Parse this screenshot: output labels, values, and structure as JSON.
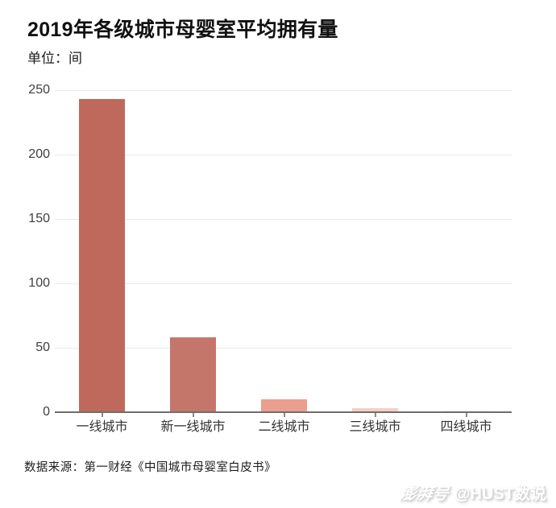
{
  "header": {
    "title": "2019年各级城市母婴室平均拥有量",
    "subtitle": "单位：间"
  },
  "footer": {
    "source": "数据来源：第一财经《中国城市母婴室白皮书》",
    "watermark_logo": "澎湃号",
    "watermark_handle": "@HUST数说"
  },
  "chart_data": {
    "type": "bar",
    "title": "2019年各级城市母婴室平均拥有量",
    "unit_label": "单位：间",
    "categories": [
      "一线城市",
      "新一线城市",
      "二线城市",
      "三线城市",
      "四线城市"
    ],
    "values": [
      243,
      58,
      10,
      3,
      1
    ],
    "bar_colors": [
      "#bf695d",
      "#c5766b",
      "#ec9e8e",
      "#f4d0c1",
      "#f8ece7"
    ],
    "xlabel": "",
    "ylabel": "",
    "ylim": [
      0,
      250
    ],
    "yticks": [
      0,
      50,
      100,
      150,
      200,
      250
    ],
    "grid": true,
    "legend_position": "none",
    "source": "数据来源：第一财经《中国城市母婴室白皮书》",
    "watermark": "澎湃号 @HUST数说",
    "style_colors": {
      "gridline": "#e9e9e9",
      "baseline": "#6e6e6e",
      "tick_mark": "#8a8a8a",
      "axis_label": "#404040",
      "title_text": "#111111"
    }
  }
}
